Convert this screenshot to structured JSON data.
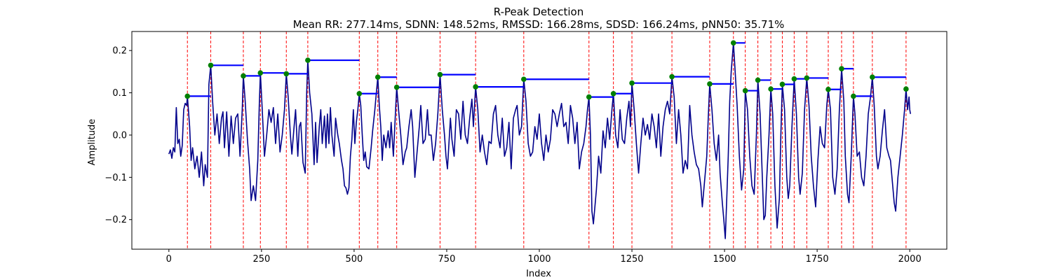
{
  "chart_data": {
    "type": "line",
    "title": "R-Peak Detection",
    "subtitle": "Mean RR: 277.14ms, SDNN: 148.52ms, RMSSD: 166.28ms, SDSD: 166.24ms, pNN50: 35.71%",
    "xlabel": "Index",
    "ylabel": "Amplitude",
    "xlim": [
      -100,
      2100
    ],
    "ylim": [
      -0.27,
      0.245
    ],
    "xticks": [
      0,
      250,
      500,
      750,
      1000,
      1250,
      1500,
      1750,
      2000
    ],
    "yticks": [
      -0.2,
      -0.1,
      0.0,
      0.1,
      0.2
    ],
    "xtick_labels": [
      "0",
      "250",
      "500",
      "750",
      "1000",
      "1250",
      "1500",
      "1750",
      "2000"
    ],
    "ytick_labels": [
      "−0.2",
      "−0.1",
      "0.0",
      "0.1",
      "0.2"
    ],
    "grid": false,
    "colors": {
      "signal": "#00008b",
      "peak_line": "#ff0000",
      "peak_marker": "#008000",
      "rr_segment": "#0000ff"
    },
    "signal_anchors": [
      [
        0,
        -0.045
      ],
      [
        4,
        -0.035
      ],
      [
        8,
        -0.055
      ],
      [
        12,
        -0.03
      ],
      [
        16,
        -0.04
      ],
      [
        20,
        0.065
      ],
      [
        24,
        -0.02
      ],
      [
        28,
        -0.01
      ],
      [
        32,
        -0.05
      ],
      [
        36,
        -0.025
      ],
      [
        40,
        0.06
      ],
      [
        44,
        0.075
      ],
      [
        48,
        0.07
      ],
      [
        50,
        0.092
      ],
      [
        56,
        0.02
      ],
      [
        60,
        -0.06
      ],
      [
        64,
        -0.03
      ],
      [
        70,
        -0.08
      ],
      [
        76,
        -0.05
      ],
      [
        82,
        -0.1
      ],
      [
        88,
        -0.04
      ],
      [
        94,
        -0.12
      ],
      [
        98,
        -0.07
      ],
      [
        104,
        -0.1
      ],
      [
        108,
        0.12
      ],
      [
        113,
        0.165
      ],
      [
        118,
        0.08
      ],
      [
        124,
        0.0
      ],
      [
        130,
        0.05
      ],
      [
        136,
        -0.02
      ],
      [
        142,
        0.04
      ],
      [
        146,
        0.055
      ],
      [
        150,
        -0.03
      ],
      [
        156,
        0.055
      ],
      [
        162,
        -0.05
      ],
      [
        168,
        0.045
      ],
      [
        174,
        -0.02
      ],
      [
        180,
        0.04
      ],
      [
        186,
        0.05
      ],
      [
        192,
        -0.05
      ],
      [
        198,
        0.06
      ],
      [
        201,
        0.14
      ],
      [
        206,
        0.08
      ],
      [
        212,
        -0.01
      ],
      [
        218,
        -0.08
      ],
      [
        222,
        -0.155
      ],
      [
        228,
        -0.12
      ],
      [
        234,
        -0.155
      ],
      [
        240,
        -0.06
      ],
      [
        244,
        0.07
      ],
      [
        247,
        0.147
      ],
      [
        252,
        0.06
      ],
      [
        258,
        -0.05
      ],
      [
        264,
        0.0
      ],
      [
        270,
        0.06
      ],
      [
        276,
        0.03
      ],
      [
        282,
        0.065
      ],
      [
        288,
        -0.02
      ],
      [
        294,
        0.05
      ],
      [
        300,
        -0.04
      ],
      [
        306,
        0.0
      ],
      [
        312,
        0.06
      ],
      [
        317,
        0.145
      ],
      [
        322,
        0.09
      ],
      [
        328,
        0.0
      ],
      [
        332,
        -0.045
      ],
      [
        338,
        0.02
      ],
      [
        342,
        0.06
      ],
      [
        348,
        -0.05
      ],
      [
        352,
        0.02
      ],
      [
        356,
        0.03
      ],
      [
        362,
        -0.065
      ],
      [
        368,
        -0.09
      ],
      [
        372,
        0.1
      ],
      [
        375,
        0.177
      ],
      [
        380,
        0.1
      ],
      [
        386,
        0.05
      ],
      [
        392,
        -0.07
      ],
      [
        396,
        0.03
      ],
      [
        400,
        -0.065
      ],
      [
        406,
        0.02
      ],
      [
        410,
        0.06
      ],
      [
        414,
        -0.02
      ],
      [
        420,
        0.045
      ],
      [
        424,
        -0.03
      ],
      [
        428,
        0.05
      ],
      [
        432,
        -0.02
      ],
      [
        436,
        0.065
      ],
      [
        440,
        0.0
      ],
      [
        446,
        -0.05
      ],
      [
        450,
        0.04
      ],
      [
        456,
        0.0
      ],
      [
        460,
        -0.02
      ],
      [
        466,
        -0.06
      ],
      [
        470,
        -0.08
      ],
      [
        474,
        -0.12
      ],
      [
        478,
        -0.125
      ],
      [
        482,
        -0.14
      ],
      [
        486,
        -0.125
      ],
      [
        490,
        -0.05
      ],
      [
        494,
        -0.01
      ],
      [
        498,
        0.06
      ],
      [
        502,
        -0.02
      ],
      [
        506,
        0.03
      ],
      [
        510,
        0.06
      ],
      [
        514,
        0.098
      ],
      [
        518,
        0.07
      ],
      [
        522,
        0.0
      ],
      [
        526,
        -0.06
      ],
      [
        530,
        -0.04
      ],
      [
        534,
        -0.075
      ],
      [
        540,
        -0.08
      ],
      [
        546,
        -0.03
      ],
      [
        550,
        0.01
      ],
      [
        556,
        0.06
      ],
      [
        560,
        0.1
      ],
      [
        564,
        0.137
      ],
      [
        568,
        0.07
      ],
      [
        572,
        0.02
      ],
      [
        576,
        -0.06
      ],
      [
        580,
        0.0
      ],
      [
        586,
        -0.03
      ],
      [
        592,
        0.01
      ],
      [
        596,
        -0.03
      ],
      [
        600,
        0.03
      ],
      [
        606,
        -0.05
      ],
      [
        612,
        0.06
      ],
      [
        615,
        0.113
      ],
      [
        620,
        0.06
      ],
      [
        626,
        0.0
      ],
      [
        632,
        -0.07
      ],
      [
        638,
        -0.04
      ],
      [
        642,
        -0.03
      ],
      [
        648,
        0.02
      ],
      [
        654,
        0.06
      ],
      [
        658,
        0.02
      ],
      [
        664,
        -0.1
      ],
      [
        670,
        -0.04
      ],
      [
        676,
        0.02
      ],
      [
        680,
        0.07
      ],
      [
        686,
        -0.02
      ],
      [
        692,
        -0.01
      ],
      [
        698,
        0.06
      ],
      [
        702,
        0.0
      ],
      [
        708,
        0.0
      ],
      [
        714,
        -0.06
      ],
      [
        720,
        -0.02
      ],
      [
        726,
        0.05
      ],
      [
        732,
        0.143
      ],
      [
        738,
        0.06
      ],
      [
        744,
        0.0
      ],
      [
        748,
        -0.05
      ],
      [
        752,
        -0.08
      ],
      [
        756,
        -0.02
      ],
      [
        760,
        0.04
      ],
      [
        764,
        -0.01
      ],
      [
        770,
        -0.05
      ],
      [
        776,
        0.06
      ],
      [
        782,
        0.05
      ],
      [
        788,
        -0.01
      ],
      [
        794,
        0.08
      ],
      [
        800,
        0.0
      ],
      [
        806,
        -0.02
      ],
      [
        812,
        0.04
      ],
      [
        818,
        0.085
      ],
      [
        822,
        0.02
      ],
      [
        828,
        0.114
      ],
      [
        834,
        0.06
      ],
      [
        840,
        -0.04
      ],
      [
        846,
        0.0
      ],
      [
        852,
        -0.04
      ],
      [
        858,
        -0.07
      ],
      [
        864,
        -0.015
      ],
      [
        870,
        -0.02
      ],
      [
        876,
        0.05
      ],
      [
        882,
        0.07
      ],
      [
        888,
        0.0
      ],
      [
        894,
        -0.03
      ],
      [
        900,
        0.04
      ],
      [
        906,
        -0.05
      ],
      [
        912,
        -0.03
      ],
      [
        918,
        0.03
      ],
      [
        924,
        -0.08
      ],
      [
        930,
        0.04
      ],
      [
        936,
        0.06
      ],
      [
        940,
        0.07
      ],
      [
        946,
        0.0
      ],
      [
        952,
        0.02
      ],
      [
        958,
        0.132
      ],
      [
        964,
        0.08
      ],
      [
        970,
        -0.02
      ],
      [
        976,
        -0.05
      ],
      [
        982,
        -0.04
      ],
      [
        988,
        0.02
      ],
      [
        994,
        -0.01
      ],
      [
        1000,
        0.05
      ],
      [
        1006,
        -0.02
      ],
      [
        1012,
        -0.06
      ],
      [
        1018,
        0.0
      ],
      [
        1024,
        -0.04
      ],
      [
        1030,
        -0.01
      ],
      [
        1036,
        0.06
      ],
      [
        1042,
        0.05
      ],
      [
        1048,
        0.02
      ],
      [
        1054,
        0.05
      ],
      [
        1060,
        0.075
      ],
      [
        1066,
        0.02
      ],
      [
        1072,
        0.03
      ],
      [
        1078,
        -0.02
      ],
      [
        1084,
        0.07
      ],
      [
        1090,
        0.04
      ],
      [
        1096,
        -0.02
      ],
      [
        1102,
        0.03
      ],
      [
        1108,
        -0.08
      ],
      [
        1114,
        -0.04
      ],
      [
        1120,
        -0.02
      ],
      [
        1126,
        0.02
      ],
      [
        1130,
        0.06
      ],
      [
        1134,
        0.09
      ],
      [
        1138,
        0.0
      ],
      [
        1142,
        -0.18
      ],
      [
        1146,
        -0.21
      ],
      [
        1150,
        -0.17
      ],
      [
        1154,
        -0.13
      ],
      [
        1160,
        -0.05
      ],
      [
        1166,
        -0.09
      ],
      [
        1172,
        0.01
      ],
      [
        1178,
        -0.03
      ],
      [
        1184,
        0.04
      ],
      [
        1190,
        -0.01
      ],
      [
        1196,
        0.06
      ],
      [
        1200,
        0.098
      ],
      [
        1206,
        0.0
      ],
      [
        1212,
        -0.03
      ],
      [
        1218,
        0.06
      ],
      [
        1224,
        -0.01
      ],
      [
        1230,
        -0.02
      ],
      [
        1236,
        0.04
      ],
      [
        1242,
        0.08
      ],
      [
        1246,
        0.02
      ],
      [
        1250,
        0.123
      ],
      [
        1256,
        0.06
      ],
      [
        1262,
        -0.02
      ],
      [
        1268,
        -0.09
      ],
      [
        1274,
        -0.02
      ],
      [
        1280,
        0.04
      ],
      [
        1286,
        0.0
      ],
      [
        1292,
        0.025
      ],
      [
        1298,
        -0.01
      ],
      [
        1304,
        0.05
      ],
      [
        1310,
        0.02
      ],
      [
        1316,
        -0.03
      ],
      [
        1322,
        0.05
      ],
      [
        1328,
        -0.05
      ],
      [
        1334,
        0.02
      ],
      [
        1340,
        0.06
      ],
      [
        1346,
        0.08
      ],
      [
        1352,
        0.05
      ],
      [
        1358,
        0.138
      ],
      [
        1364,
        0.09
      ],
      [
        1370,
        -0.02
      ],
      [
        1376,
        0.06
      ],
      [
        1382,
        0.0
      ],
      [
        1388,
        -0.09
      ],
      [
        1394,
        -0.06
      ],
      [
        1400,
        -0.08
      ],
      [
        1406,
        0.07
      ],
      [
        1412,
        0.0
      ],
      [
        1418,
        -0.04
      ],
      [
        1424,
        -0.07
      ],
      [
        1430,
        -0.08
      ],
      [
        1436,
        -0.12
      ],
      [
        1440,
        -0.17
      ],
      [
        1446,
        -0.11
      ],
      [
        1452,
        -0.05
      ],
      [
        1456,
        0.04
      ],
      [
        1460,
        0.121
      ],
      [
        1466,
        0.06
      ],
      [
        1472,
        -0.02
      ],
      [
        1478,
        -0.06
      ],
      [
        1484,
        0.0
      ],
      [
        1488,
        -0.09
      ],
      [
        1494,
        -0.16
      ],
      [
        1498,
        -0.2
      ],
      [
        1502,
        -0.245
      ],
      [
        1506,
        -0.15
      ],
      [
        1510,
        -0.05
      ],
      [
        1514,
        0.08
      ],
      [
        1518,
        0.15
      ],
      [
        1524,
        0.218
      ],
      [
        1528,
        0.16
      ],
      [
        1534,
        0.07
      ],
      [
        1540,
        -0.05
      ],
      [
        1546,
        -0.13
      ],
      [
        1552,
        -0.08
      ],
      [
        1556,
        0.105
      ],
      [
        1562,
        0.06
      ],
      [
        1568,
        -0.05
      ],
      [
        1574,
        -0.12
      ],
      [
        1580,
        -0.14
      ],
      [
        1586,
        0.0
      ],
      [
        1590,
        0.13
      ],
      [
        1596,
        0.05
      ],
      [
        1602,
        -0.1
      ],
      [
        1606,
        -0.2
      ],
      [
        1610,
        -0.19
      ],
      [
        1614,
        -0.1
      ],
      [
        1620,
        0.0
      ],
      [
        1625,
        0.109
      ],
      [
        1630,
        0.05
      ],
      [
        1636,
        -0.12
      ],
      [
        1642,
        -0.22
      ],
      [
        1648,
        -0.15
      ],
      [
        1652,
        0.0
      ],
      [
        1656,
        0.12
      ],
      [
        1662,
        0.06
      ],
      [
        1668,
        -0.1
      ],
      [
        1672,
        -0.15
      ],
      [
        1676,
        -0.12
      ],
      [
        1682,
        0.02
      ],
      [
        1688,
        0.133
      ],
      [
        1694,
        0.05
      ],
      [
        1700,
        -0.1
      ],
      [
        1704,
        -0.14
      ],
      [
        1710,
        -0.09
      ],
      [
        1716,
        0.06
      ],
      [
        1722,
        0.135
      ],
      [
        1728,
        0.07
      ],
      [
        1734,
        -0.05
      ],
      [
        1740,
        -0.12
      ],
      [
        1746,
        -0.17
      ],
      [
        1752,
        -0.06
      ],
      [
        1758,
        0.02
      ],
      [
        1764,
        -0.02
      ],
      [
        1770,
        -0.03
      ],
      [
        1776,
        0.07
      ],
      [
        1780,
        0.108
      ],
      [
        1786,
        0.06
      ],
      [
        1792,
        -0.1
      ],
      [
        1798,
        -0.14
      ],
      [
        1804,
        -0.08
      ],
      [
        1810,
        0.06
      ],
      [
        1816,
        0.157
      ],
      [
        1822,
        0.08
      ],
      [
        1826,
        -0.05
      ],
      [
        1832,
        -0.14
      ],
      [
        1836,
        -0.16
      ],
      [
        1842,
        -0.05
      ],
      [
        1848,
        0.092
      ],
      [
        1852,
        0.05
      ],
      [
        1858,
        -0.05
      ],
      [
        1864,
        -0.04
      ],
      [
        1870,
        -0.1
      ],
      [
        1876,
        -0.12
      ],
      [
        1882,
        -0.05
      ],
      [
        1888,
        0.05
      ],
      [
        1894,
        0.09
      ],
      [
        1899,
        0.137
      ],
      [
        1904,
        0.07
      ],
      [
        1910,
        -0.05
      ],
      [
        1914,
        -0.08
      ],
      [
        1920,
        -0.05
      ],
      [
        1926,
        0.01
      ],
      [
        1932,
        0.06
      ],
      [
        1938,
        -0.03
      ],
      [
        1944,
        -0.05
      ],
      [
        1948,
        -0.06
      ],
      [
        1954,
        -0.12
      ],
      [
        1958,
        -0.16
      ],
      [
        1962,
        -0.18
      ],
      [
        1968,
        -0.1
      ],
      [
        1974,
        -0.05
      ],
      [
        1980,
        0.0
      ],
      [
        1986,
        0.06
      ],
      [
        1990,
        0.109
      ],
      [
        1994,
        0.06
      ],
      [
        1998,
        0.09
      ],
      [
        2000,
        0.06
      ],
      [
        2002,
        0.05
      ]
    ],
    "r_peaks": [
      {
        "x": 50,
        "y": 0.092,
        "next_x": 113
      },
      {
        "x": 113,
        "y": 0.165,
        "next_x": 201
      },
      {
        "x": 201,
        "y": 0.14,
        "next_x": 247
      },
      {
        "x": 247,
        "y": 0.147,
        "next_x": 317
      },
      {
        "x": 317,
        "y": 0.145,
        "next_x": 375
      },
      {
        "x": 375,
        "y": 0.177,
        "next_x": 514
      },
      {
        "x": 514,
        "y": 0.098,
        "next_x": 564
      },
      {
        "x": 564,
        "y": 0.137,
        "next_x": 615
      },
      {
        "x": 615,
        "y": 0.113,
        "next_x": 732
      },
      {
        "x": 732,
        "y": 0.143,
        "next_x": 828
      },
      {
        "x": 828,
        "y": 0.114,
        "next_x": 958
      },
      {
        "x": 958,
        "y": 0.132,
        "next_x": 1134
      },
      {
        "x": 1134,
        "y": 0.09,
        "next_x": 1200
      },
      {
        "x": 1200,
        "y": 0.098,
        "next_x": 1250
      },
      {
        "x": 1250,
        "y": 0.123,
        "next_x": 1358
      },
      {
        "x": 1358,
        "y": 0.138,
        "next_x": 1460
      },
      {
        "x": 1460,
        "y": 0.121,
        "next_x": 1524
      },
      {
        "x": 1524,
        "y": 0.218,
        "next_x": 1556
      },
      {
        "x": 1556,
        "y": 0.105,
        "next_x": 1590
      },
      {
        "x": 1590,
        "y": 0.13,
        "next_x": 1625
      },
      {
        "x": 1625,
        "y": 0.109,
        "next_x": 1656
      },
      {
        "x": 1656,
        "y": 0.12,
        "next_x": 1688
      },
      {
        "x": 1688,
        "y": 0.133,
        "next_x": 1722
      },
      {
        "x": 1722,
        "y": 0.135,
        "next_x": 1780
      },
      {
        "x": 1780,
        "y": 0.108,
        "next_x": 1816
      },
      {
        "x": 1816,
        "y": 0.157,
        "next_x": 1848
      },
      {
        "x": 1848,
        "y": 0.092,
        "next_x": 1899
      },
      {
        "x": 1899,
        "y": 0.137,
        "next_x": 1990
      },
      {
        "x": 1990,
        "y": 0.109,
        "next_x": null
      }
    ]
  }
}
